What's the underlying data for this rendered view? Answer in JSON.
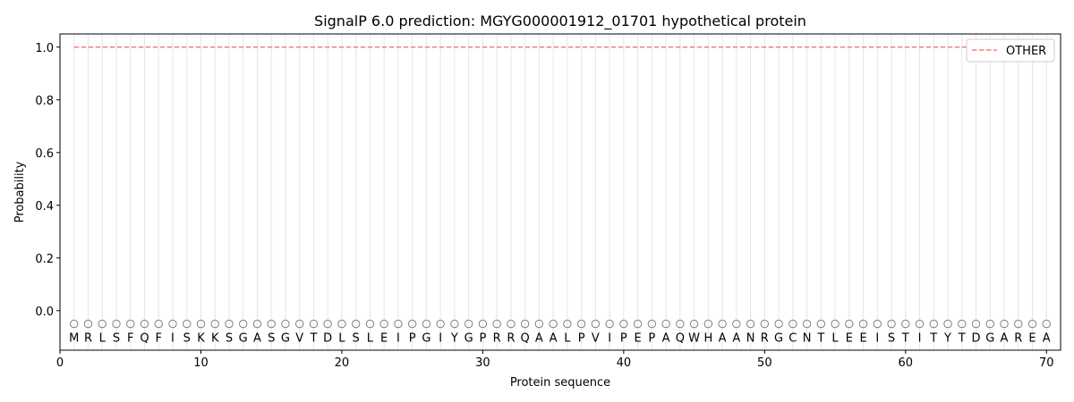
{
  "chart_data": {
    "type": "line",
    "title": "SignalP 6.0 prediction: MGYG000001912_01701 hypothetical protein",
    "xlabel": "Protein sequence",
    "ylabel": "Probability",
    "xlim": [
      0,
      71
    ],
    "ylim": [
      -0.15,
      1.05
    ],
    "xticks": [
      0,
      10,
      20,
      30,
      40,
      50,
      60,
      70
    ],
    "yticks": [
      0.0,
      0.2,
      0.4,
      0.6,
      0.8,
      1.0
    ],
    "ytick_labels": [
      "0.0",
      "0.2",
      "0.4",
      "0.6",
      "0.8",
      "1.0"
    ],
    "grid": "vertical lines at each residue",
    "legend_placement": "top-right",
    "sequence": "MRLSFQFISKKSGASGVTDLSLEIPGIYGPRRQAALPVIPEPAQWHAANRGCNTLEEISTITYTDGAREA",
    "region_label": "O",
    "series": [
      {
        "name": "OTHER",
        "color": "#f08080",
        "style": "dashed",
        "x_start": 1,
        "x_end": 70,
        "value": 1.0
      }
    ]
  }
}
